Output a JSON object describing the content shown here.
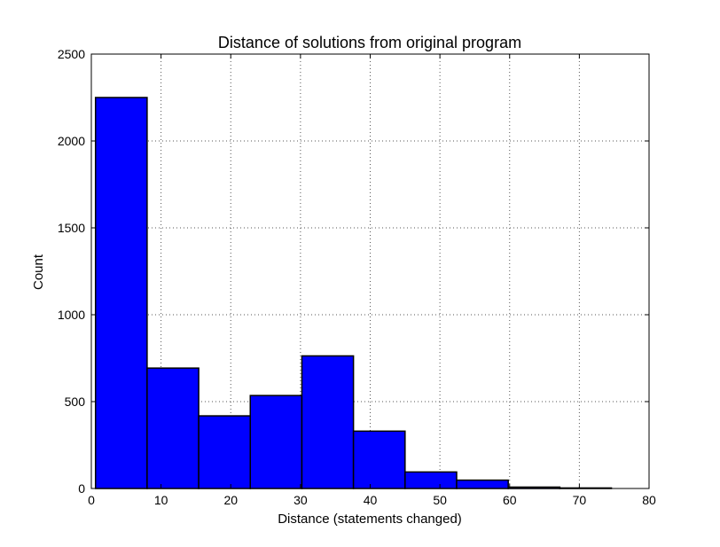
{
  "chart_data": {
    "type": "bar",
    "title": "Distance of solutions from original program",
    "xlabel": "Distance (statements changed)",
    "ylabel": "Count",
    "xlim": [
      0,
      80
    ],
    "ylim": [
      0,
      2500
    ],
    "xticks": [
      0,
      10,
      20,
      30,
      40,
      50,
      60,
      70,
      80
    ],
    "yticks": [
      0,
      500,
      1000,
      1500,
      2000,
      2500
    ],
    "grid": true,
    "bar_color": "#0000ff",
    "bins": [
      {
        "start": 0.6,
        "end": 8.0,
        "value": 2250
      },
      {
        "start": 8.0,
        "end": 15.4,
        "value": 693
      },
      {
        "start": 15.4,
        "end": 22.8,
        "value": 418
      },
      {
        "start": 22.8,
        "end": 30.2,
        "value": 535
      },
      {
        "start": 30.2,
        "end": 37.6,
        "value": 763
      },
      {
        "start": 37.6,
        "end": 45.0,
        "value": 330
      },
      {
        "start": 45.0,
        "end": 52.4,
        "value": 95
      },
      {
        "start": 52.4,
        "end": 59.8,
        "value": 48
      },
      {
        "start": 59.8,
        "end": 67.2,
        "value": 8
      },
      {
        "start": 67.2,
        "end": 74.6,
        "value": 3
      }
    ]
  }
}
